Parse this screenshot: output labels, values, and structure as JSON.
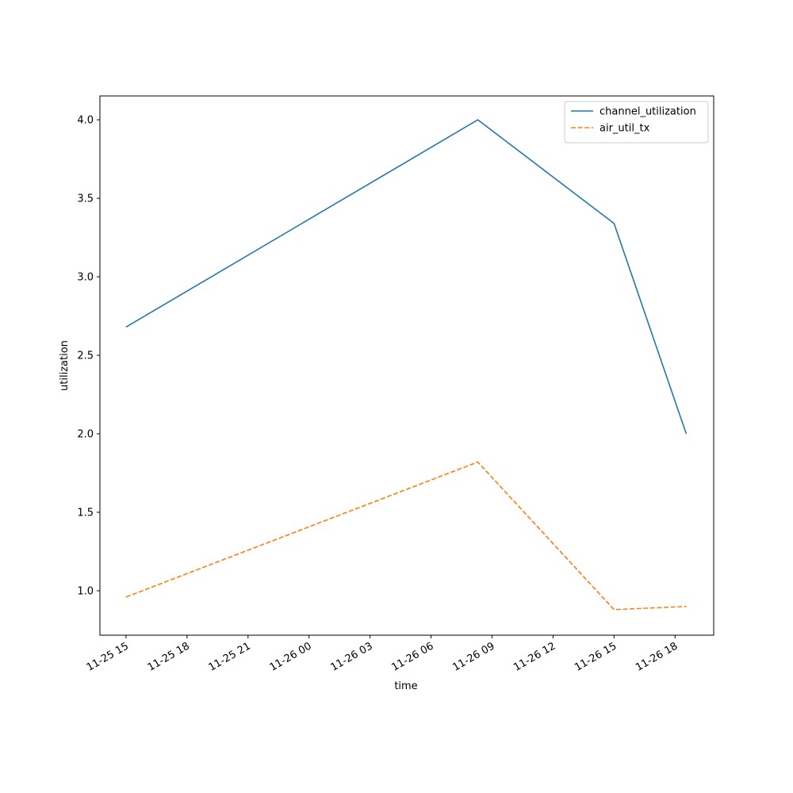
{
  "chart_data": {
    "type": "line",
    "x_label": "time",
    "y_label": "utilization",
    "x": [
      "11-25 15:00",
      "11-26 08:18",
      "11-26 15:00",
      "11-26 18:33"
    ],
    "series": [
      {
        "name": "channel_utilization",
        "color": "#1f77b4",
        "linestyle": "solid",
        "values": [
          2.68,
          4.0,
          3.34,
          2.0
        ]
      },
      {
        "name": "air_util_tx",
        "color": "#ff7f0e",
        "linestyle": "dashed",
        "values": [
          0.96,
          1.82,
          0.88,
          0.9
        ]
      }
    ],
    "xlim": [
      "11-25 13:43",
      "11-26 19:54"
    ],
    "xticks": [
      {
        "value": "11-25 15:00",
        "label": "11-25 15"
      },
      {
        "value": "11-25 18:00",
        "label": "11-25 18"
      },
      {
        "value": "11-25 21:00",
        "label": "11-25 21"
      },
      {
        "value": "11-26 00:00",
        "label": "11-26 00"
      },
      {
        "value": "11-26 03:00",
        "label": "11-26 03"
      },
      {
        "value": "11-26 06:00",
        "label": "11-26 06"
      },
      {
        "value": "11-26 09:00",
        "label": "11-26 09"
      },
      {
        "value": "11-26 12:00",
        "label": "11-26 12"
      },
      {
        "value": "11-26 15:00",
        "label": "11-26 15"
      },
      {
        "value": "11-26 18:00",
        "label": "11-26 18"
      }
    ],
    "ylim": [
      0.717,
      4.152
    ],
    "yticks": [
      {
        "value": 1.0,
        "label": "1.0"
      },
      {
        "value": 1.5,
        "label": "1.5"
      },
      {
        "value": 2.0,
        "label": "2.0"
      },
      {
        "value": 2.5,
        "label": "2.5"
      },
      {
        "value": 3.0,
        "label": "3.0"
      },
      {
        "value": 3.5,
        "label": "3.5"
      },
      {
        "value": 4.0,
        "label": "4.0"
      }
    ],
    "grid": false,
    "legend": "upper right"
  }
}
